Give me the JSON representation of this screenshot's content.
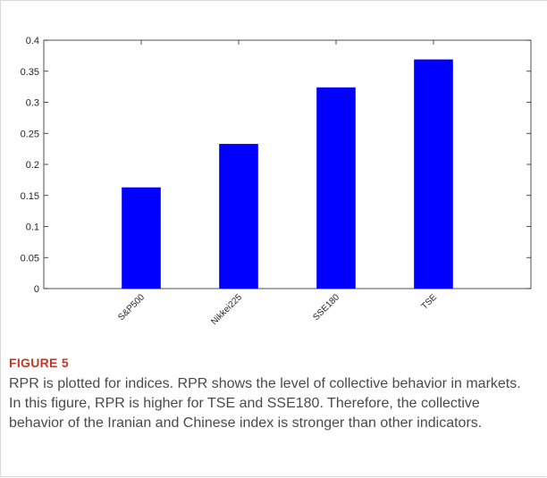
{
  "chart_data": {
    "type": "bar",
    "categories": [
      "S&P500",
      "Nikkei225",
      "SSE180",
      "TSE"
    ],
    "values": [
      0.163,
      0.233,
      0.324,
      0.369
    ],
    "title": "",
    "xlabel": "",
    "ylabel": "",
    "ylim": [
      0,
      0.4
    ],
    "yticks": [
      "0",
      "0.05",
      "0.1",
      "0.15",
      "0.2",
      "0.25",
      "0.3",
      "0.35",
      "0.4"
    ],
    "bar_color": "#0000ff",
    "grid": false
  },
  "caption": {
    "label": "FIGURE 5",
    "text": "RPR is plotted for indices. RPR shows the level of collective behavior in markets. In this figure, RPR is higher for TSE and SSE180. Therefore, the collective behavior of the Iranian and Chinese index is stronger than other indicators.",
    "label_color": "#c0392b"
  }
}
